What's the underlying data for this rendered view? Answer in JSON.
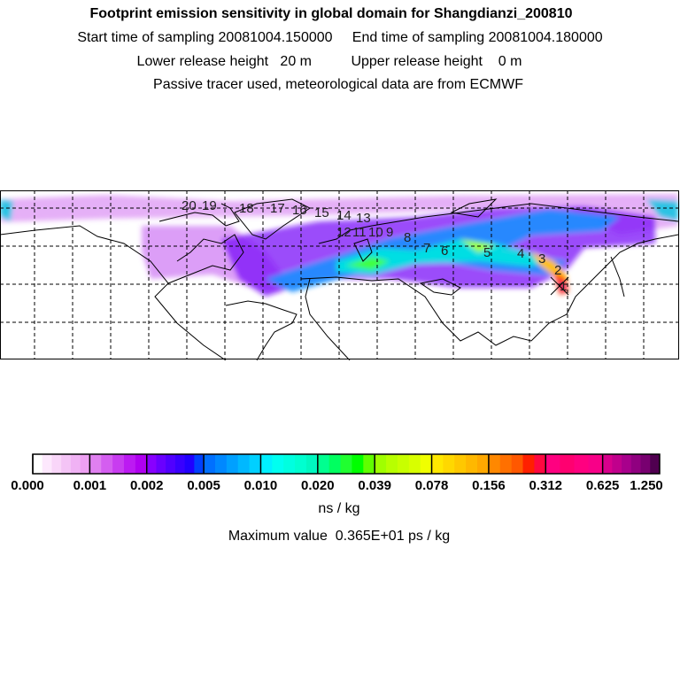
{
  "header": {
    "title": "Footprint emission sensitivity in global domain for Shangdianzi_200810",
    "line2": "Start time of sampling 20081004.150000     End time of sampling 20081004.180000",
    "line3": "Lower release height   20 m          Upper release height    0 m",
    "line4": "Passive tracer used, meteorological data are from ECMWF"
  },
  "map": {
    "trajectory_labels": [
      "1",
      "2",
      "3",
      "4",
      "5",
      "6",
      "7",
      "8",
      "9",
      "10",
      "11",
      "12",
      "13",
      "14",
      "15",
      "16",
      "17",
      "18",
      "19",
      "20"
    ]
  },
  "chart_data": {
    "type": "heatmap",
    "title": "Footprint emission sensitivity in global domain for Shangdianzi_200810",
    "colorbar": {
      "tick_labels": [
        "0.000",
        "0.001",
        "0.002",
        "0.005",
        "0.010",
        "0.020",
        "0.039",
        "0.078",
        "0.156",
        "0.312",
        "0.625",
        "1.250"
      ],
      "segment_colors": [
        [
          "#ffffff",
          "#fde8fd",
          "#f9d6f9",
          "#f4c4f6",
          "#f0b2f4",
          "#eda0f2"
        ],
        [
          "#e080f0",
          "#d45ef0",
          "#c83cf0",
          "#bc1af2",
          "#b000f0"
        ],
        [
          "#8800ff",
          "#6a00ff",
          "#5000ff",
          "#3800ff",
          "#2000ff",
          "#0040ff"
        ],
        [
          "#0070ff",
          "#0088ff",
          "#00a0ff",
          "#00b8ff",
          "#00d0ff"
        ],
        [
          "#00f0ff",
          "#00fff0",
          "#00ffe0",
          "#00ffd0",
          "#00f8c0"
        ],
        [
          "#00ff90",
          "#00ff60",
          "#20ff30",
          "#00ff00",
          "#60ff00"
        ],
        [
          "#a0ff00",
          "#b8ff00",
          "#c8ff00",
          "#d8ff00",
          "#f0ff00"
        ],
        [
          "#ffe800",
          "#ffd800",
          "#ffc800",
          "#ffb800",
          "#ffa800"
        ],
        [
          "#ff8800",
          "#ff7000",
          "#ff5800",
          "#ff2000",
          "#ff0840"
        ],
        [
          "#ff0080",
          "#ff0070",
          "#ff0080",
          "#f80088"
        ],
        [
          "#d8008c",
          "#c0008c",
          "#a8008c",
          "#900080",
          "#780070",
          "#500050"
        ]
      ],
      "unit": "ns / kg"
    },
    "max_value": "Maximum value  0.365E+01 ps / kg"
  }
}
